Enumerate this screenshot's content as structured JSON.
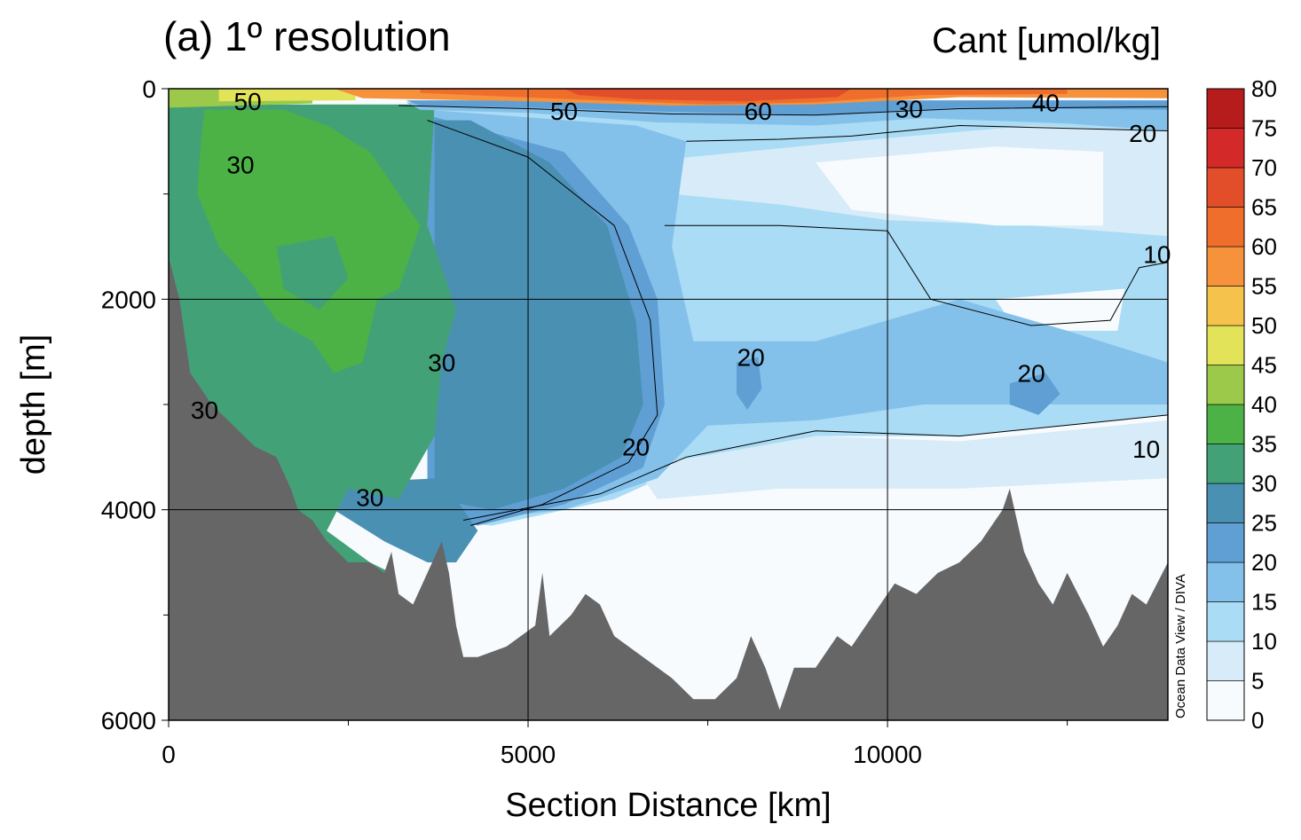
{
  "chart_data": {
    "type": "heatmap",
    "title": "(a) 1º resolution",
    "colorbar_label": "Cant [umol/kg]",
    "xlabel": "Section Distance [km]",
    "ylabel": "depth [m]",
    "xlim": [
      0,
      13900
    ],
    "ylim": [
      6000,
      0
    ],
    "x_ticks": [
      0,
      5000,
      10000
    ],
    "y_ticks": [
      0,
      2000,
      4000,
      6000
    ],
    "grid": true,
    "colorbar": {
      "levels": [
        0,
        5,
        10,
        15,
        20,
        25,
        30,
        35,
        40,
        45,
        50,
        55,
        60,
        65,
        70,
        75,
        80
      ],
      "colors": [
        "#f7fbfe",
        "#d7ecf8",
        "#aadcf5",
        "#84c1ea",
        "#5f9fd4",
        "#4a90b3",
        "#43a178",
        "#4cb245",
        "#9cc94a",
        "#e3e35a",
        "#f5c24c",
        "#f6923b",
        "#f06e2c",
        "#e24e2a",
        "#d42929",
        "#b71c1c"
      ]
    },
    "contour_labels": [
      {
        "text": "50",
        "x": 1100,
        "y": 120
      },
      {
        "text": "30",
        "x": 1000,
        "y": 720
      },
      {
        "text": "50",
        "x": 5500,
        "y": 210
      },
      {
        "text": "60",
        "x": 8200,
        "y": 210
      },
      {
        "text": "30",
        "x": 10300,
        "y": 190
      },
      {
        "text": "40",
        "x": 12200,
        "y": 130
      },
      {
        "text": "20",
        "x": 13550,
        "y": 420
      },
      {
        "text": "10",
        "x": 13750,
        "y": 1570
      },
      {
        "text": "30",
        "x": 3800,
        "y": 2600
      },
      {
        "text": "20",
        "x": 8100,
        "y": 2550
      },
      {
        "text": "20",
        "x": 12000,
        "y": 2700
      },
      {
        "text": "10",
        "x": 13600,
        "y": 3420
      },
      {
        "text": "20",
        "x": 6500,
        "y": 3400
      },
      {
        "text": "30",
        "x": 2800,
        "y": 3880
      },
      {
        "text": "30",
        "x": 500,
        "y": 3050
      }
    ],
    "credit": "Ocean Data View / DIVA"
  }
}
